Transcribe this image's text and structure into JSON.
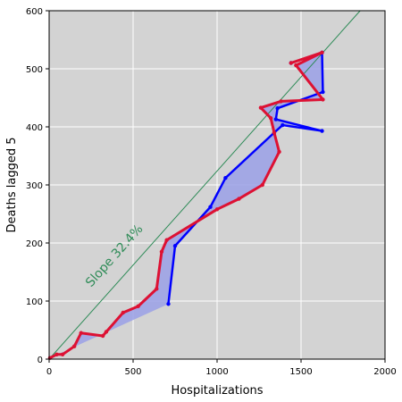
{
  "chart_data": {
    "type": "line",
    "xlabel": "Hospitalizations",
    "ylabel": "Deaths lagged 5",
    "xlim": [
      0,
      2000
    ],
    "ylim": [
      0,
      600
    ],
    "xticks": [
      0,
      500,
      1000,
      1500,
      2000
    ],
    "yticks": [
      0,
      100,
      200,
      300,
      400,
      500,
      600
    ],
    "grid": true,
    "background": "#d3d3d3",
    "annotation": {
      "text": "Slope 32.4%",
      "color": "#2e8b57"
    },
    "slope_line": {
      "slope": 0.324,
      "color": "#2e8b57"
    },
    "fill_color": "#9aa0e6",
    "series": [
      {
        "color": "#0000ff",
        "points": [
          [
            710,
            95
          ],
          [
            750,
            195
          ],
          [
            960,
            262
          ],
          [
            1050,
            312
          ],
          [
            1340,
            390
          ],
          [
            1390,
            403
          ],
          [
            1625,
            393
          ],
          [
            1350,
            413
          ],
          [
            1360,
            432
          ],
          [
            1630,
            460
          ],
          [
            1625,
            528
          ],
          [
            1440,
            510
          ]
        ]
      },
      {
        "color": "#dd1133",
        "points": [
          [
            5,
            2
          ],
          [
            45,
            8
          ],
          [
            80,
            8
          ],
          [
            150,
            22
          ],
          [
            190,
            45
          ],
          [
            320,
            40
          ],
          [
            340,
            47
          ],
          [
            440,
            80
          ],
          [
            530,
            91
          ],
          [
            640,
            121
          ],
          [
            670,
            185
          ],
          [
            700,
            205
          ],
          [
            1000,
            258
          ],
          [
            1130,
            276
          ],
          [
            1270,
            300
          ],
          [
            1370,
            357
          ],
          [
            1340,
            390
          ],
          [
            1320,
            415
          ],
          [
            1260,
            433
          ],
          [
            1380,
            444
          ],
          [
            1630,
            447
          ],
          [
            1470,
            506
          ],
          [
            1625,
            528
          ],
          [
            1440,
            510
          ]
        ]
      }
    ]
  }
}
